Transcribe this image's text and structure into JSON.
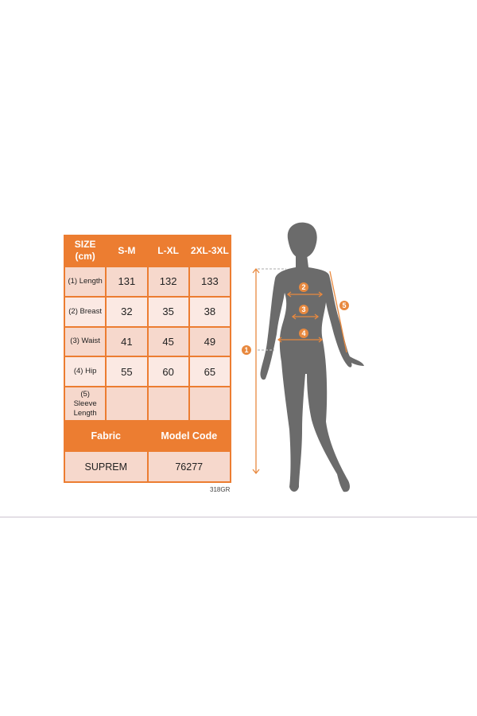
{
  "size_table": {
    "header": [
      "SIZE (cm)",
      "S-M",
      "L-XL",
      "2XL-3XL"
    ],
    "rows": [
      {
        "label": "(1) Length",
        "values": [
          "131",
          "132",
          "133"
        ]
      },
      {
        "label": "(2) Breast",
        "values": [
          "32",
          "35",
          "38"
        ]
      },
      {
        "label": "(3) Waist",
        "values": [
          "41",
          "45",
          "49"
        ]
      },
      {
        "label": "(4) Hip",
        "values": [
          "55",
          "60",
          "65"
        ]
      },
      {
        "label": "(5) Sleeve Length",
        "values": [
          "",
          "",
          ""
        ]
      }
    ],
    "fabric_label": "Fabric",
    "model_code_label": "Model Code",
    "fabric_value": "SUPREM",
    "model_code_value": "76277"
  },
  "product_code": "318GR",
  "figure": {
    "markers": [
      "1",
      "2",
      "3",
      "4",
      "5"
    ],
    "accent_color": "#e8893f",
    "silhouette_color": "#6b6b6b"
  }
}
